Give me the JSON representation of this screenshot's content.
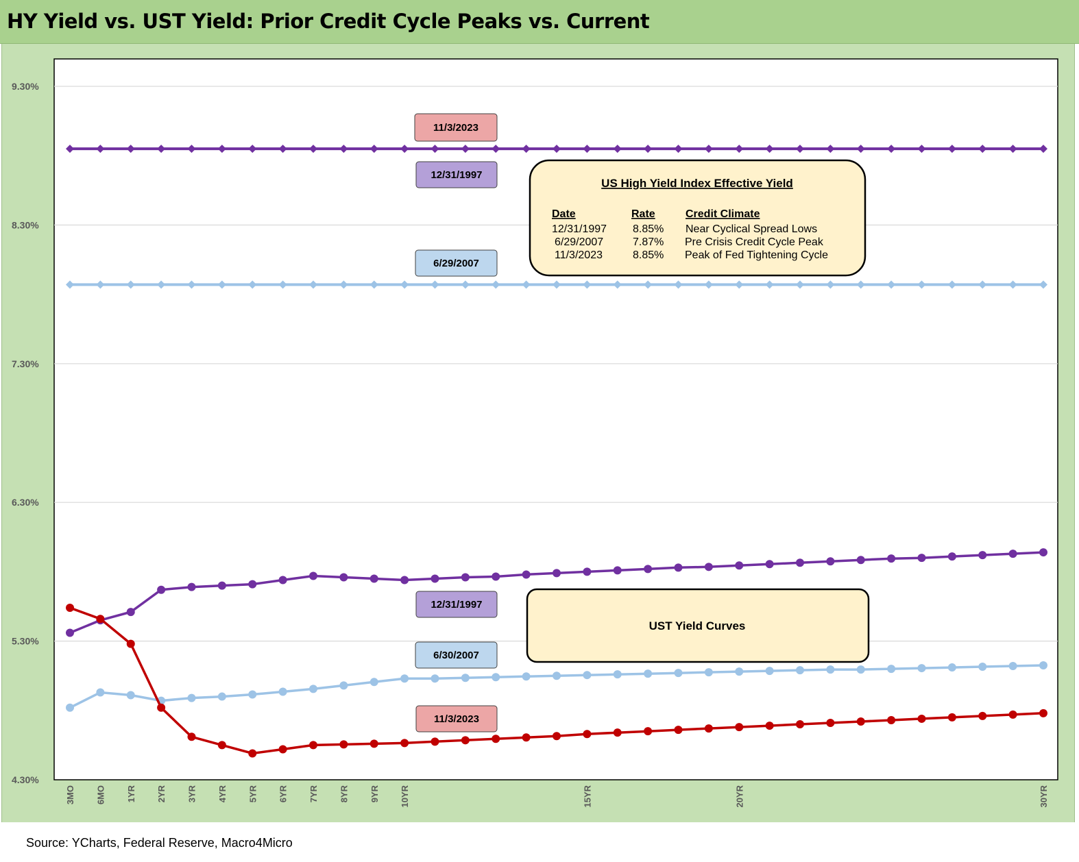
{
  "title": "HY Yield vs. UST Yield: Prior Credit Cycle Peaks vs. Current",
  "source": "Source: YCharts, Federal Reserve, Macro4Micro",
  "chart_data": {
    "type": "line",
    "categories": [
      "3MO",
      "6MO",
      "1YR",
      "2YR",
      "3YR",
      "4YR",
      "5YR",
      "6YR",
      "7YR",
      "8YR",
      "9YR",
      "10YR",
      "",
      "",
      "",
      "",
      "",
      "15YR",
      "",
      "",
      "",
      "",
      "20YR",
      "",
      "",
      "",
      "",
      "",
      "",
      "",
      "",
      "",
      "30YR"
    ],
    "y_ticks": [
      "9.30%",
      "8.30%",
      "7.30%",
      "6.30%",
      "5.30%",
      "4.30%"
    ],
    "ylim": [
      4.3,
      9.5
    ],
    "grid": true,
    "colors": {
      "purple": "#7030a0",
      "lightblue": "#9dc3e6",
      "red": "#c00000",
      "hy_line": "#7030a0"
    },
    "series": [
      {
        "key": "hy_2023",
        "marker": "diamond",
        "color": "#7030a0",
        "values": [
          8.85,
          8.85,
          8.85,
          8.85,
          8.85,
          8.85,
          8.85,
          8.85,
          8.85,
          8.85,
          8.85,
          8.85,
          8.85,
          8.85,
          8.85,
          8.85,
          8.85,
          8.85,
          8.85,
          8.85,
          8.85,
          8.85,
          8.85,
          8.85,
          8.85,
          8.85,
          8.85,
          8.85,
          8.85,
          8.85,
          8.85,
          8.85,
          8.85
        ]
      },
      {
        "key": "hy_2007",
        "marker": "diamond",
        "color": "#9dc3e6",
        "values": [
          7.87,
          7.87,
          7.87,
          7.87,
          7.87,
          7.87,
          7.87,
          7.87,
          7.87,
          7.87,
          7.87,
          7.87,
          7.87,
          7.87,
          7.87,
          7.87,
          7.87,
          7.87,
          7.87,
          7.87,
          7.87,
          7.87,
          7.87,
          7.87,
          7.87,
          7.87,
          7.87,
          7.87,
          7.87,
          7.87,
          7.87,
          7.87,
          7.87
        ]
      },
      {
        "key": "ust_1997",
        "marker": "circle",
        "color": "#7030a0",
        "values": [
          5.36,
          5.45,
          5.51,
          5.67,
          5.69,
          5.7,
          5.71,
          5.74,
          5.77,
          5.76,
          5.75,
          5.74,
          5.75,
          5.76,
          5.765,
          5.78,
          5.79,
          5.8,
          5.81,
          5.82,
          5.83,
          5.835,
          5.845,
          5.855,
          5.865,
          5.875,
          5.885,
          5.895,
          5.9,
          5.91,
          5.92,
          5.93,
          5.94
        ]
      },
      {
        "key": "ust_2007",
        "marker": "circle",
        "color": "#9dc3e6",
        "values": [
          4.82,
          4.93,
          4.91,
          4.87,
          4.89,
          4.9,
          4.915,
          4.935,
          4.955,
          4.98,
          5.005,
          5.03,
          5.03,
          5.035,
          5.04,
          5.045,
          5.05,
          5.055,
          5.06,
          5.065,
          5.07,
          5.075,
          5.08,
          5.085,
          5.09,
          5.095,
          5.095,
          5.1,
          5.105,
          5.11,
          5.115,
          5.12,
          5.125
        ]
      },
      {
        "key": "ust_2023",
        "marker": "circle",
        "color": "#c00000",
        "values": [
          5.54,
          5.46,
          5.28,
          4.82,
          4.61,
          4.55,
          4.49,
          4.52,
          4.55,
          4.555,
          4.56,
          4.565,
          4.575,
          4.585,
          4.595,
          4.605,
          4.615,
          4.63,
          4.64,
          4.65,
          4.66,
          4.67,
          4.68,
          4.69,
          4.7,
          4.71,
          4.72,
          4.73,
          4.74,
          4.75,
          4.76,
          4.77,
          4.78
        ]
      }
    ],
    "labels": [
      {
        "text": "11/3/2023",
        "fill": "#eca6a6"
      },
      {
        "text": "12/31/1997",
        "fill": "#b4a0d8"
      },
      {
        "text": "6/29/2007",
        "fill": "#bdd7ee"
      },
      {
        "text": "12/31/1997",
        "fill": "#b4a0d8"
      },
      {
        "text": "6/30/2007",
        "fill": "#bdd7ee"
      },
      {
        "text": "11/3/2023",
        "fill": "#eca6a6"
      }
    ],
    "hy_box": {
      "title": "US High Yield Index Effective Yield",
      "headers": [
        "Date",
        "Rate",
        "Credit Climate"
      ],
      "rows": [
        [
          "12/31/1997",
          "8.85%",
          "Near Cyclical Spread Lows"
        ],
        [
          "6/29/2007",
          "7.87%",
          "Pre Crisis Credit Cycle Peak"
        ],
        [
          "11/3/2023",
          "8.85%",
          "Peak of Fed Tightening Cycle"
        ]
      ],
      "fill": "#fff2cc"
    },
    "ust_box": {
      "title": "UST Yield Curves",
      "fill": "#fff2cc"
    }
  }
}
